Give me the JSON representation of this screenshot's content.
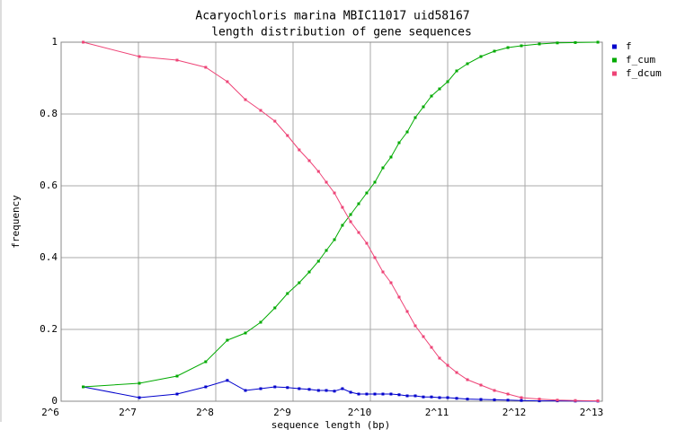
{
  "chart_data": {
    "type": "line",
    "title": "Acaryochloris marina MBIC11017 uid58167",
    "subtitle": "length distribution of gene sequences",
    "x_label": "sequence length (bp)",
    "y_label": "frequency",
    "x": [
      78,
      129,
      181,
      234,
      284,
      334,
      383,
      435,
      487,
      541,
      592,
      643,
      690,
      742,
      797,
      858,
      922,
      991,
      1066,
      1146,
      1232,
      1325,
      1425,
      1532,
      1647,
      1771,
      1904,
      2048,
      2220,
      2445,
      2759,
      3114,
      3515,
      3965,
      4660,
      5475,
      6432,
      7872
    ],
    "series": [
      {
        "name": "f",
        "color": "#0000cc",
        "values": [
          0.04,
          0.01,
          0.02,
          0.04,
          0.058,
          0.03,
          0.035,
          0.04,
          0.038,
          0.035,
          0.033,
          0.03,
          0.03,
          0.028,
          0.035,
          0.025,
          0.02,
          0.02,
          0.02,
          0.02,
          0.02,
          0.018,
          0.015,
          0.015,
          0.012,
          0.012,
          0.01,
          0.01,
          0.008,
          0.006,
          0.005,
          0.004,
          0.003,
          0.002,
          0.001,
          0.001,
          0.0005,
          0.0003
        ]
      },
      {
        "name": "f_cum",
        "color": "#00aa00",
        "values": [
          0.04,
          0.05,
          0.07,
          0.11,
          0.17,
          0.19,
          0.22,
          0.26,
          0.3,
          0.33,
          0.36,
          0.39,
          0.42,
          0.45,
          0.49,
          0.52,
          0.55,
          0.58,
          0.61,
          0.65,
          0.68,
          0.72,
          0.75,
          0.79,
          0.82,
          0.85,
          0.87,
          0.89,
          0.92,
          0.94,
          0.96,
          0.975,
          0.985,
          0.99,
          0.995,
          0.998,
          0.999,
          1.0
        ]
      },
      {
        "name": "f_dcum",
        "color": "#ee4477",
        "values": [
          1.0,
          0.96,
          0.95,
          0.93,
          0.89,
          0.84,
          0.81,
          0.78,
          0.74,
          0.7,
          0.67,
          0.64,
          0.61,
          0.58,
          0.54,
          0.5,
          0.47,
          0.44,
          0.4,
          0.36,
          0.33,
          0.29,
          0.25,
          0.21,
          0.18,
          0.15,
          0.12,
          0.1,
          0.08,
          0.06,
          0.045,
          0.03,
          0.02,
          0.01,
          0.006,
          0.003,
          0.002,
          0.001
        ]
      }
    ],
    "xscale": "log",
    "log_base": 2,
    "xlim": [
      64,
      8192
    ],
    "xticks": [
      {
        "value": 64,
        "label": "2^6"
      },
      {
        "value": 128,
        "label": "2^7"
      },
      {
        "value": 256,
        "label": "2^8"
      },
      {
        "value": 512,
        "label": "2^9"
      },
      {
        "value": 1024,
        "label": "2^10"
      },
      {
        "value": 2048,
        "label": "2^11"
      },
      {
        "value": 4096,
        "label": "2^12"
      },
      {
        "value": 8192,
        "label": "2^13"
      }
    ],
    "ylim": [
      0,
      1
    ],
    "yticks": [
      0,
      0.2,
      0.4,
      0.6,
      0.8,
      1
    ],
    "grid": true,
    "legend": "right"
  }
}
